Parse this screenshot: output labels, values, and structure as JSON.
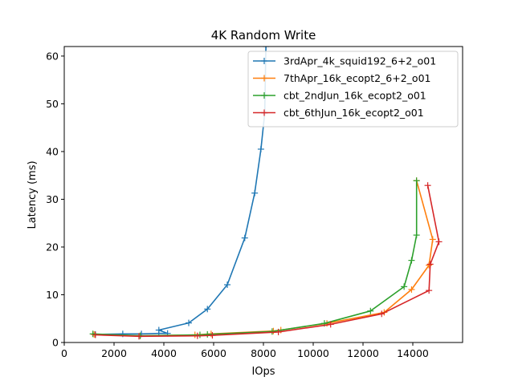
{
  "chart_data": {
    "type": "line",
    "title": "4K  Random Write",
    "xlabel": "IOps",
    "ylabel": "Latency (ms)",
    "xlim": [
      0,
      16000
    ],
    "ylim": [
      0,
      62
    ],
    "xticks": [
      0,
      2000,
      4000,
      6000,
      8000,
      10000,
      12000,
      14000
    ],
    "yticks": [
      0,
      10,
      20,
      30,
      40,
      50,
      60
    ],
    "grid": false,
    "legend_position": "top-right",
    "marker": "+",
    "series": [
      {
        "name": "3rdApr_4k_squid192_6+2_o01",
        "color": "#1f77b4",
        "points": [
          [
            1250,
            1.7
          ],
          [
            2350,
            1.8
          ],
          [
            3100,
            1.8
          ],
          [
            3800,
            1.9
          ],
          [
            4150,
            1.9
          ],
          [
            3800,
            2.6
          ],
          [
            5000,
            4.1
          ],
          [
            5750,
            7.0
          ],
          [
            6550,
            12.1
          ],
          [
            7250,
            21.9
          ],
          [
            7650,
            31.3
          ],
          [
            7900,
            40.5
          ],
          [
            8050,
            48.0
          ],
          [
            8100,
            62.0
          ]
        ]
      },
      {
        "name": "7thApr_16k_ecopt2_6+2_o01",
        "color": "#ff7f0e",
        "points": [
          [
            1200,
            1.7
          ],
          [
            3050,
            1.4
          ],
          [
            5250,
            1.6
          ],
          [
            5900,
            1.8
          ],
          [
            8400,
            2.4
          ],
          [
            8700,
            2.6
          ],
          [
            10550,
            4.0
          ],
          [
            12850,
            6.3
          ],
          [
            13950,
            11.1
          ],
          [
            14650,
            16.2
          ],
          [
            14800,
            21.6
          ],
          [
            14150,
            33.9
          ]
        ]
      },
      {
        "name": "cbt_2ndJun_16k_ecopt2_o01",
        "color": "#2ca02c",
        "points": [
          [
            1150,
            1.8
          ],
          [
            3050,
            1.4
          ],
          [
            5450,
            1.6
          ],
          [
            5750,
            1.7
          ],
          [
            8350,
            2.3
          ],
          [
            10450,
            4.0
          ],
          [
            12300,
            6.6
          ],
          [
            13650,
            11.7
          ],
          [
            13950,
            17.2
          ],
          [
            14150,
            22.5
          ],
          [
            14150,
            33.9
          ]
        ]
      },
      {
        "name": "cbt_6thJun_16k_ecopt2_o01",
        "color": "#d62728",
        "points": [
          [
            1250,
            1.6
          ],
          [
            3000,
            1.3
          ],
          [
            5350,
            1.4
          ],
          [
            5950,
            1.5
          ],
          [
            8600,
            2.2
          ],
          [
            10700,
            3.8
          ],
          [
            12750,
            6.0
          ],
          [
            14650,
            10.9
          ],
          [
            14700,
            16.4
          ],
          [
            15050,
            21.1
          ],
          [
            14600,
            32.9
          ]
        ]
      }
    ]
  }
}
